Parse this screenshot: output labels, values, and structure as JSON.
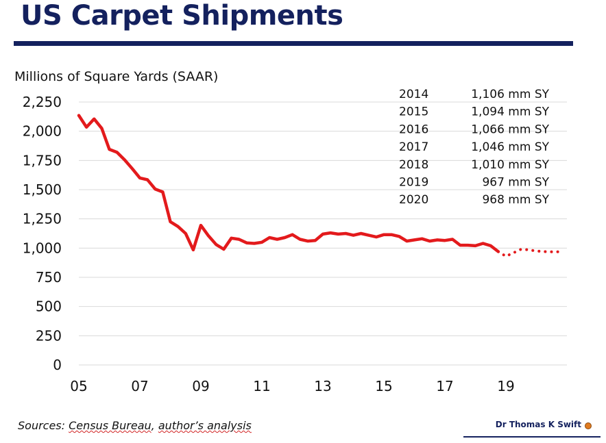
{
  "header": {
    "title": "US Carpet Shipments"
  },
  "footer": {
    "sources_prefix": "Sources: ",
    "sources_a": "Census Bureau",
    "sources_sep": ", ",
    "sources_b": "author’s analysis",
    "author": "Dr Thomas K Swift"
  },
  "colors": {
    "title": "#14215e",
    "series": "#e31a1c",
    "grid": "#d9d9d9"
  },
  "chart_data": {
    "type": "line",
    "title": "",
    "ylabel": "Millions of Square Yards (SAAR)",
    "xlabel": "",
    "ylim": [
      0,
      2250
    ],
    "yticks": [
      0,
      250,
      500,
      750,
      1000,
      1250,
      1500,
      1750,
      2000,
      2250
    ],
    "ytick_labels": [
      "0",
      "250",
      "500",
      "750",
      "1,000",
      "1,250",
      "1,500",
      "1,750",
      "2,000",
      "2,250"
    ],
    "xlim": [
      2005,
      2021
    ],
    "xticks": [
      2005,
      2007,
      2009,
      2011,
      2013,
      2015,
      2017,
      2019
    ],
    "xtick_labels": [
      "05",
      "07",
      "09",
      "11",
      "13",
      "15",
      "17",
      "19"
    ],
    "grid": true,
    "series": [
      {
        "style": "solid",
        "x": [
          2005.0,
          2005.25,
          2005.5,
          2005.75,
          2006.0,
          2006.25,
          2006.5,
          2006.75,
          2007.0,
          2007.25,
          2007.5,
          2007.75,
          2008.0,
          2008.25,
          2008.5,
          2008.75,
          2009.0,
          2009.25,
          2009.5,
          2009.75,
          2010.0,
          2010.25,
          2010.5,
          2010.75,
          2011.0,
          2011.25,
          2011.5,
          2011.75,
          2012.0,
          2012.25,
          2012.5,
          2012.75,
          2013.0,
          2013.25,
          2013.5,
          2013.75,
          2014.0,
          2014.25,
          2014.5,
          2014.75,
          2015.0,
          2015.25,
          2015.5,
          2015.75,
          2016.0,
          2016.25,
          2016.5,
          2016.75,
          2017.0,
          2017.25,
          2017.5,
          2017.75,
          2018.0,
          2018.25,
          2018.5,
          2018.75
        ],
        "y": [
          2135,
          2035,
          2105,
          2025,
          1845,
          1820,
          1755,
          1680,
          1600,
          1585,
          1505,
          1480,
          1225,
          1185,
          1125,
          985,
          1195,
          1105,
          1030,
          990,
          1085,
          1075,
          1045,
          1040,
          1050,
          1090,
          1075,
          1090,
          1115,
          1075,
          1060,
          1065,
          1120,
          1130,
          1120,
          1125,
          1110,
          1125,
          1110,
          1095,
          1115,
          1115,
          1100,
          1060,
          1070,
          1080,
          1060,
          1070,
          1065,
          1075,
          1025,
          1025,
          1020,
          1040,
          1020,
          970
        ]
      },
      {
        "style": "dotted",
        "x": [
          2018.75,
          2019.0,
          2019.25,
          2019.5,
          2019.75,
          2020.0,
          2020.25,
          2020.5,
          2020.75
        ],
        "y": [
          970,
          930,
          960,
          990,
          985,
          975,
          970,
          968,
          968
        ]
      }
    ],
    "annotations": {
      "table": [
        {
          "year": "2014",
          "value": "1,106 mm SY"
        },
        {
          "year": "2015",
          "value": "1,094 mm SY"
        },
        {
          "year": "2016",
          "value": "1,066 mm SY"
        },
        {
          "year": "2017",
          "value": "1,046 mm SY"
        },
        {
          "year": "2018",
          "value": "1,010 mm SY"
        },
        {
          "year": "2019",
          "value": "967 mm SY"
        },
        {
          "year": "2020",
          "value": "968 mm SY"
        }
      ]
    }
  }
}
